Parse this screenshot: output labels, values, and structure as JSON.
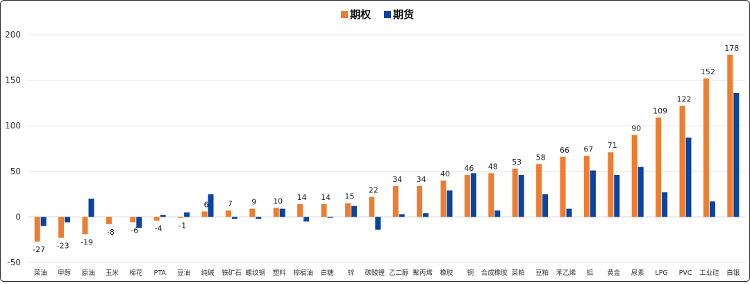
{
  "chart_data": {
    "type": "bar",
    "categories": [
      "菜油",
      "甲醇",
      "原油",
      "玉米",
      "棉花",
      "PTA",
      "豆油",
      "纯碱",
      "铁矿石",
      "螺纹钢",
      "塑料",
      "棕榈油",
      "白糖",
      "锌",
      "碳酸锂",
      "乙二醇",
      "聚丙烯",
      "橡胶",
      "铜",
      "合成橡胶",
      "菜粕",
      "豆粕",
      "苯乙烯",
      "铝",
      "黄金",
      "尿素",
      "LPG",
      "PVC",
      "工业硅",
      "白银"
    ],
    "series": [
      {
        "name": "期权",
        "values": [
          -27,
          -23,
          -19,
          -8,
          -6,
          -4,
          -1,
          6,
          7,
          9,
          10,
          14,
          14,
          15,
          22,
          34,
          34,
          40,
          46,
          48,
          53,
          58,
          66,
          67,
          71,
          90,
          109,
          122,
          152,
          178
        ]
      },
      {
        "name": "期货",
        "values": [
          -10,
          -6,
          20,
          0,
          -12,
          2,
          5,
          25,
          -2,
          -2,
          9,
          -5,
          -1,
          12,
          -14,
          3,
          4,
          29,
          48,
          7,
          46,
          25,
          9,
          51,
          46,
          55,
          27,
          87,
          17,
          136
        ]
      }
    ],
    "data_labels": [
      "-27",
      "-23",
      "-19",
      "-8",
      "-6",
      "-4",
      "-1",
      "6",
      "7",
      "9",
      "10",
      "14",
      "14",
      "15",
      "22",
      "34",
      "34",
      "40",
      "46",
      "48",
      "53",
      "58",
      "66",
      "67",
      "71",
      "90",
      "109",
      "122",
      "152",
      "178"
    ],
    "ylim": [
      -50,
      200
    ],
    "yticks": [
      -50,
      0,
      50,
      100,
      150,
      200
    ],
    "grid": true,
    "legend_position": "top-center",
    "colors": {
      "期权": "#ED7D31",
      "期货": "#0B44A0"
    }
  }
}
